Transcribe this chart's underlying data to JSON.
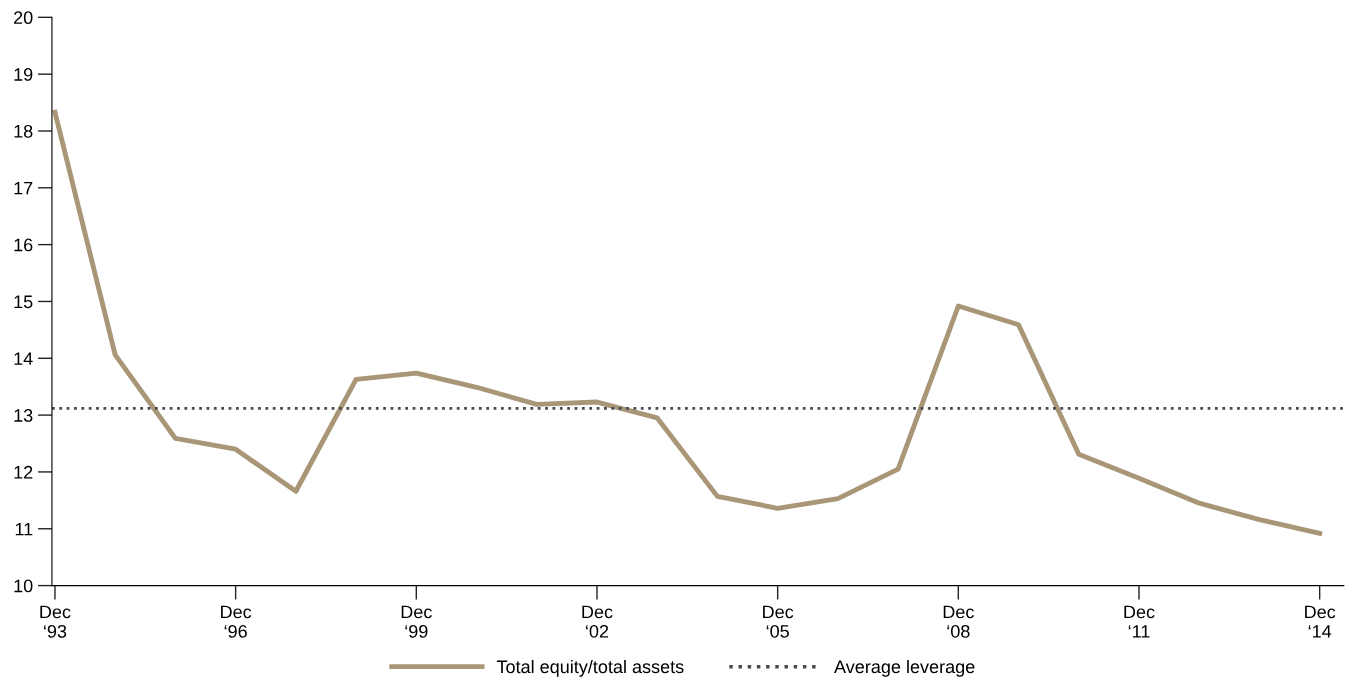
{
  "chart_data": {
    "type": "line",
    "categories": [
      "Dec\n‘93",
      null,
      null,
      "Dec\n‘96",
      null,
      null,
      "Dec\n‘99",
      null,
      null,
      "Dec\n‘02",
      null,
      null,
      "Dec\n‘05",
      null,
      null,
      "Dec\n‘08",
      null,
      null,
      "Dec\n‘11",
      null,
      null,
      "Dec\n‘14"
    ],
    "series": [
      {
        "name": "Total equity/total assets",
        "color": "#a89677",
        "values": [
          18.33,
          14.06,
          12.59,
          12.4,
          11.66,
          13.63,
          13.74,
          13.49,
          13.19,
          13.23,
          12.95,
          11.57,
          11.36,
          11.53,
          12.05,
          14.92,
          14.59,
          12.31,
          11.89,
          11.45,
          11.16,
          10.92
        ]
      }
    ],
    "ref_lines": [
      {
        "axis": "y",
        "value": 13.12,
        "label": "Average leverage",
        "color": "#4a4a52",
        "line_style": "dotted"
      }
    ],
    "ylim": [
      10,
      20
    ],
    "yticks": [
      10,
      11,
      12,
      13,
      14,
      15,
      16,
      17,
      18,
      19,
      20
    ],
    "grid": false,
    "legend": "bottom",
    "marker": "none",
    "line_style": "solid"
  }
}
